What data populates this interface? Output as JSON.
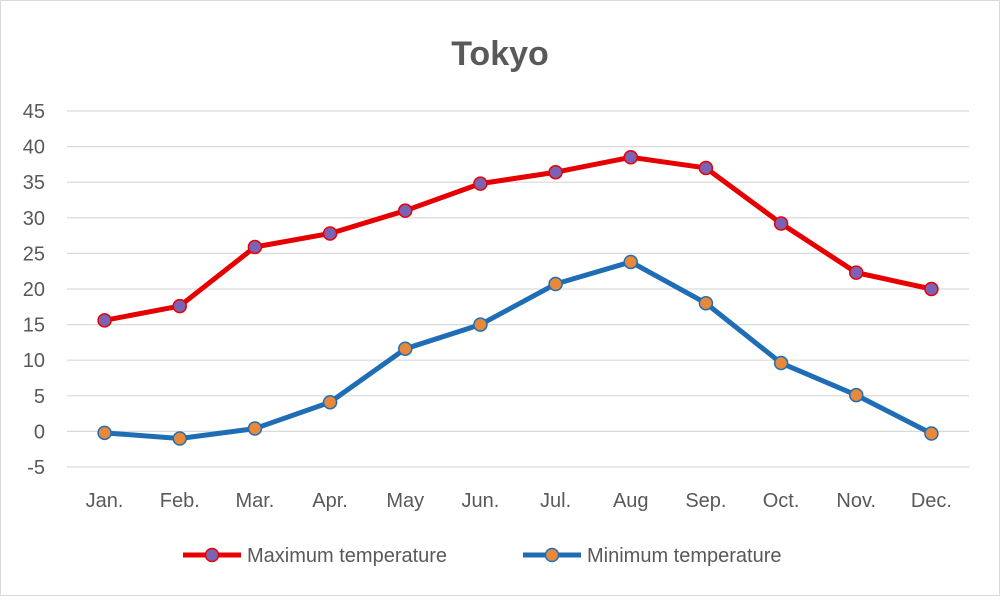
{
  "chart_data": {
    "type": "line",
    "title": "Tokyo",
    "xlabel": "",
    "ylabel": "",
    "ylim": [
      -5,
      45
    ],
    "ytick_step": 5,
    "grid": true,
    "legend_position": "bottom",
    "categories": [
      "Jan.",
      "Feb.",
      "Mar.",
      "Apr.",
      "May",
      "Jun.",
      "Jul.",
      "Aug",
      "Sep.",
      "Oct.",
      "Nov.",
      "Dec."
    ],
    "series": [
      {
        "name": "Maximum temperature",
        "line_color": "#e60000",
        "marker_color": "#7a63b5",
        "values": [
          15.6,
          17.6,
          25.9,
          27.8,
          31.0,
          34.8,
          36.4,
          38.5,
          37.0,
          29.2,
          22.3,
          20.0
        ]
      },
      {
        "name": "Minimum temperature",
        "line_color": "#1f6eb5",
        "marker_color": "#e8893a",
        "values": [
          -0.2,
          -1.0,
          0.4,
          4.1,
          11.6,
          15.0,
          20.7,
          23.8,
          18.0,
          9.6,
          5.1,
          -0.3
        ]
      }
    ]
  }
}
